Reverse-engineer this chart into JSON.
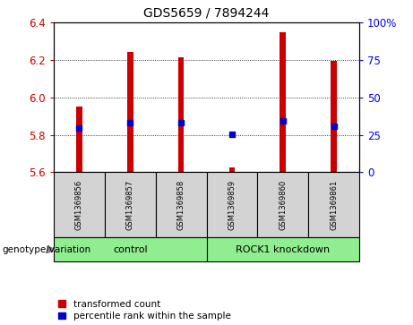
{
  "title": "GDS5659 / 7894244",
  "samples": [
    "GSM1369856",
    "GSM1369857",
    "GSM1369858",
    "GSM1369859",
    "GSM1369860",
    "GSM1369861"
  ],
  "red_values": [
    5.95,
    6.245,
    6.215,
    5.625,
    6.35,
    6.195
  ],
  "blue_values": [
    5.835,
    5.865,
    5.865,
    5.805,
    5.875,
    5.845
  ],
  "ylim_left": [
    5.6,
    6.4
  ],
  "ylim_right": [
    0,
    100
  ],
  "yticks_left": [
    5.6,
    5.8,
    6.0,
    6.2,
    6.4
  ],
  "yticks_right": [
    0,
    25,
    50,
    75,
    100
  ],
  "group_bg_color": "#90ee90",
  "sample_bg_color": "#d3d3d3",
  "plot_bg_color": "#ffffff",
  "red_color": "#cc0000",
  "blue_color": "#0000cc",
  "bar_bottom": 5.6,
  "bar_width": 0.12,
  "legend_red_label": "transformed count",
  "legend_blue_label": "percentile rank within the sample",
  "genotype_label": "genotype/variation",
  "group_labels": [
    "control",
    "ROCK1 knockdown"
  ],
  "group_ranges": [
    [
      0,
      2
    ],
    [
      3,
      5
    ]
  ]
}
